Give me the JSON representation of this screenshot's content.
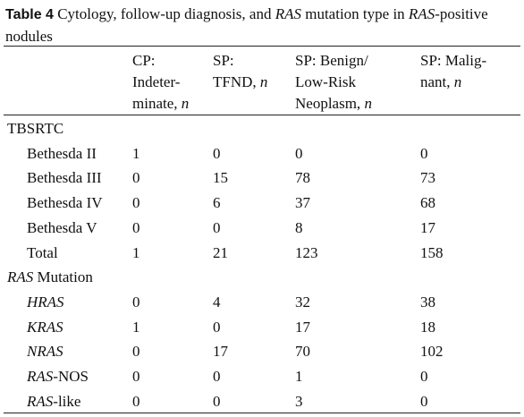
{
  "caption": {
    "label": "Table 4",
    "text": [
      {
        "text": " Cytology, follow-up diagnosis, and "
      },
      {
        "text": "RAS",
        "italic": true
      },
      {
        "text": " mutation type in "
      },
      {
        "text": "RAS",
        "italic": true
      },
      {
        "text": "-positive nodules"
      }
    ]
  },
  "table": {
    "columns": [
      [
        [
          {
            "text": "CP:"
          }
        ],
        [
          {
            "text": "Indeter-"
          }
        ],
        [
          {
            "text": "minate, "
          },
          {
            "text": "n",
            "italic": true
          }
        ]
      ],
      [
        [
          {
            "text": "SP:"
          }
        ],
        [
          {
            "text": "TFND, "
          },
          {
            "text": "n",
            "italic": true
          }
        ]
      ],
      [
        [
          {
            "text": "SP: Benign/"
          }
        ],
        [
          {
            "text": "Low-Risk"
          }
        ],
        [
          {
            "text": "Neoplasm, "
          },
          {
            "text": "n",
            "italic": true
          }
        ]
      ],
      [
        [
          {
            "text": "SP: Malig-"
          }
        ],
        [
          {
            "text": "nant, "
          },
          {
            "text": "n",
            "italic": true
          }
        ]
      ]
    ],
    "sections": [
      {
        "label": [
          {
            "text": "TBSRTC"
          }
        ],
        "rows": [
          {
            "label": [
              {
                "text": "Bethesda II"
              }
            ],
            "values": [
              1,
              0,
              0,
              0
            ]
          },
          {
            "label": [
              {
                "text": "Bethesda III"
              }
            ],
            "values": [
              0,
              15,
              78,
              73
            ]
          },
          {
            "label": [
              {
                "text": "Bethesda IV"
              }
            ],
            "values": [
              0,
              6,
              37,
              68
            ]
          },
          {
            "label": [
              {
                "text": "Bethesda V"
              }
            ],
            "values": [
              0,
              0,
              8,
              17
            ]
          },
          {
            "label": [
              {
                "text": "Total"
              }
            ],
            "values": [
              1,
              21,
              123,
              158
            ]
          }
        ]
      },
      {
        "label": [
          {
            "text": "RAS",
            "italic": true
          },
          {
            "text": " Mutation"
          }
        ],
        "rows": [
          {
            "label": [
              {
                "text": "HRAS",
                "italic": true
              }
            ],
            "values": [
              0,
              4,
              32,
              38
            ]
          },
          {
            "label": [
              {
                "text": "KRAS",
                "italic": true
              }
            ],
            "values": [
              1,
              0,
              17,
              18
            ]
          },
          {
            "label": [
              {
                "text": "NRAS",
                "italic": true
              }
            ],
            "values": [
              0,
              17,
              70,
              102
            ]
          },
          {
            "label": [
              {
                "text": "RAS",
                "italic": true
              },
              {
                "text": "-NOS"
              }
            ],
            "values": [
              0,
              0,
              1,
              0
            ]
          },
          {
            "label": [
              {
                "text": "RAS",
                "italic": true
              },
              {
                "text": "-like"
              }
            ],
            "values": [
              0,
              0,
              3,
              0
            ]
          }
        ]
      }
    ]
  }
}
